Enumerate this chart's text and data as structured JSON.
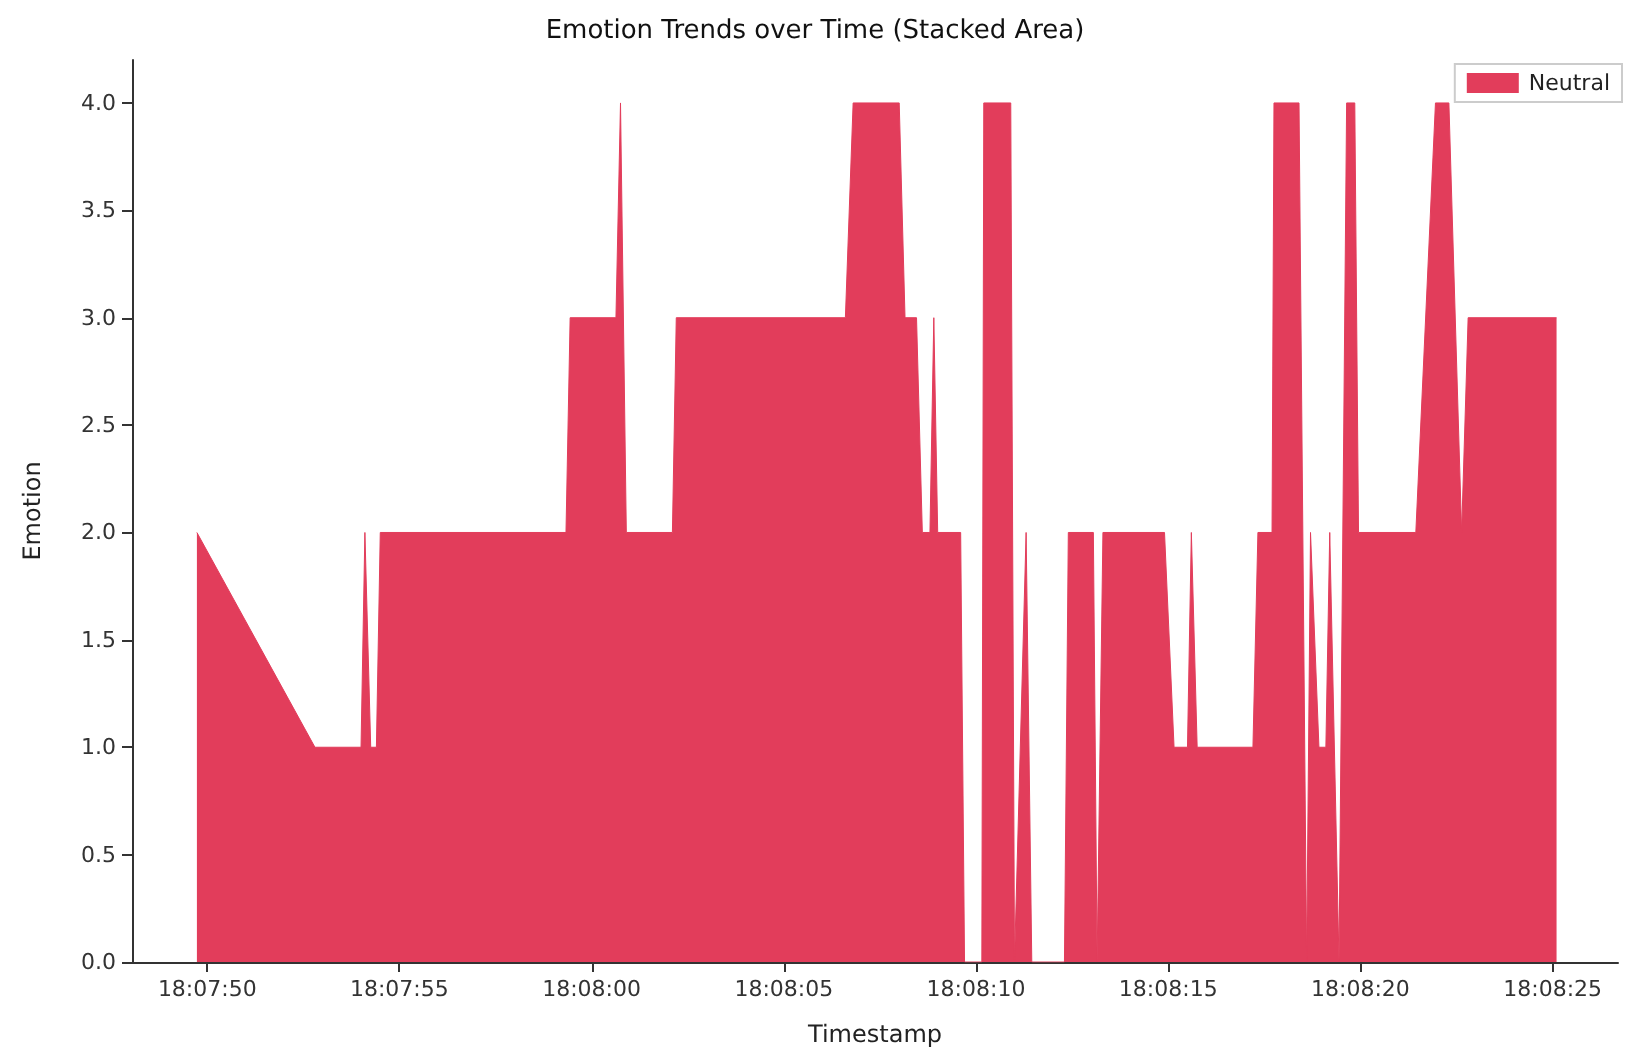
{
  "chart_data": {
    "type": "area",
    "title": "Emotion Trends over Time (Stacked Area)",
    "xlabel": "Timestamp",
    "ylabel": "Emotion",
    "legend": "top right",
    "grid": false,
    "x": [
      18.130481,
      18.131334,
      18.131667,
      18.131695,
      18.131737,
      18.131778,
      18.131806,
      18.133148,
      18.133178,
      18.133509,
      18.133542,
      18.133584,
      18.133917,
      18.133945,
      18.135167,
      18.135223,
      18.135556,
      18.135598,
      18.135681,
      18.135723,
      18.135778,
      18.135806,
      18.135834,
      18.136,
      18.136028,
      18.136153,
      18.136167,
      18.136362,
      18.136389,
      18.136473,
      18.136514,
      18.13675,
      18.136778,
      18.136959,
      18.136986,
      18.137028,
      18.137473,
      18.137542,
      18.137639,
      18.137667,
      18.137709,
      18.138112,
      18.138148,
      18.13825,
      18.138264,
      18.138445,
      18.1385,
      18.138528,
      18.138589,
      18.138639,
      18.138667,
      18.138734,
      18.138789,
      18.138848,
      18.138875,
      18.139289,
      18.139431,
      18.139528,
      18.13962,
      18.139667,
      18.140306
    ],
    "series": [
      {
        "name": "Neutral",
        "color": "#e23d5b",
        "values": [
          2,
          1,
          1,
          2,
          1,
          1,
          2,
          2,
          3,
          3,
          4,
          2,
          2,
          3,
          3,
          4,
          4,
          3,
          3,
          2,
          2,
          3,
          2,
          2,
          0,
          0,
          4,
          4,
          0,
          2,
          0,
          0,
          2,
          2,
          0,
          2,
          2,
          1,
          1,
          2,
          1,
          1,
          2,
          2,
          4,
          4,
          0,
          2,
          1,
          1,
          2,
          0,
          4,
          4,
          2,
          2,
          4,
          4,
          2,
          3,
          3
        ]
      }
    ],
    "xlim": [
      18.130012,
      18.14075
    ],
    "xticks": [
      {
        "value": 18.130556,
        "label": "18:07:50"
      },
      {
        "value": 18.131944,
        "label": "18:07:55"
      },
      {
        "value": 18.133333,
        "label": "18:08:00"
      },
      {
        "value": 18.134722,
        "label": "18:08:05"
      },
      {
        "value": 18.136111,
        "label": "18:08:10"
      },
      {
        "value": 18.1375,
        "label": "18:08:15"
      },
      {
        "value": 18.138889,
        "label": "18:08:20"
      },
      {
        "value": 18.140278,
        "label": "18:08:25"
      }
    ],
    "ylim": [
      0,
      4.2
    ],
    "yticks": [
      {
        "value": 0,
        "label": "0.0"
      },
      0.5,
      {
        "value": 1,
        "label": "1.0"
      },
      1.5,
      {
        "value": 2,
        "label": "2.0"
      },
      2.5,
      {
        "value": 3,
        "label": "3.0"
      },
      3.5,
      {
        "value": 4,
        "label": "4.0"
      }
    ]
  }
}
